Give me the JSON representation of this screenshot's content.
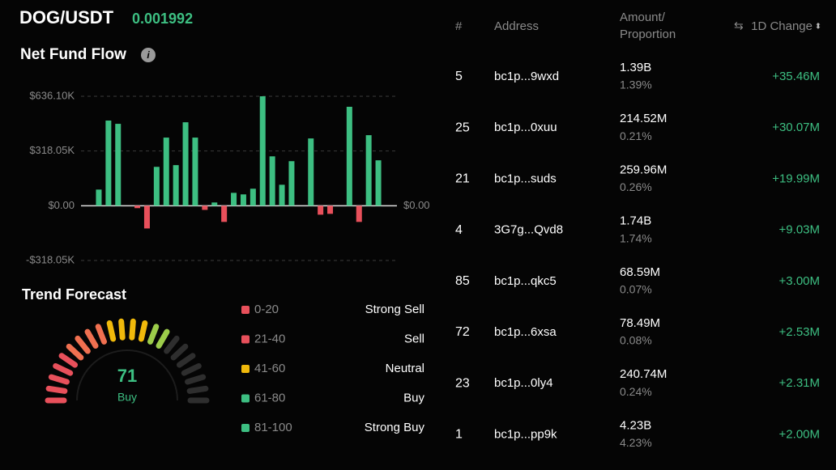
{
  "header": {
    "pair": "DOG/USDT",
    "price": "0.001992"
  },
  "chart_data": {
    "type": "bar",
    "title": "Net Fund Flow",
    "values": [
      94000,
      495000,
      476000,
      0,
      -14000,
      -132000,
      226000,
      396000,
      236000,
      485000,
      396000,
      -24000,
      19000,
      -94000,
      75000,
      66000,
      99000,
      636000,
      287000,
      122000,
      259000,
      0,
      391000,
      -52000,
      -47000,
      0,
      575000,
      -94000,
      410000,
      264000
    ],
    "positive_color": "#3dbf82",
    "negative_color": "#e8505b",
    "ylim": [
      -318050,
      636100
    ],
    "yticks": [
      {
        "value": 636100,
        "label": "$636.10K"
      },
      {
        "value": 318050,
        "label": "$318.05K"
      },
      {
        "value": 0,
        "label": "$0.00"
      },
      {
        "value": -318050,
        "label": "-$318.05K"
      }
    ],
    "grid": true
  },
  "trend": {
    "title": "Trend Forecast",
    "value": 71,
    "label": "Buy",
    "legend": [
      {
        "range": "0-20",
        "label": "Strong Sell",
        "color": "#e8505b"
      },
      {
        "range": "21-40",
        "label": "Sell",
        "color": "#e8505b"
      },
      {
        "range": "41-60",
        "label": "Neutral",
        "color": "#f0b90b"
      },
      {
        "range": "61-80",
        "label": "Buy",
        "color": "#3dbf82"
      },
      {
        "range": "81-100",
        "label": "Strong Buy",
        "color": "#3dbf82"
      }
    ]
  },
  "table": {
    "headers": [
      "#",
      "Address",
      [
        "Amount/",
        "Proportion"
      ],
      "1D Change"
    ],
    "rows": [
      [
        "5",
        "bc1p...9wxd",
        "1.39B",
        "1.39%",
        "+35.46M"
      ],
      [
        "25",
        "bc1p...0xuu",
        "214.52M",
        "0.21%",
        "+30.07M"
      ],
      [
        "21",
        "bc1p...suds",
        "259.96M",
        "0.26%",
        "+19.99M"
      ],
      [
        "4",
        "3G7g...Qvd8",
        "1.74B",
        "1.74%",
        "+9.03M"
      ],
      [
        "85",
        "bc1p...qkc5",
        "68.59M",
        "0.07%",
        "+3.00M"
      ],
      [
        "72",
        "bc1p...6xsa",
        "78.49M",
        "0.08%",
        "+2.53M"
      ],
      [
        "23",
        "bc1p...0ly4",
        "240.74M",
        "0.24%",
        "+2.31M"
      ],
      [
        "1",
        "bc1p...pp9k",
        "4.23B",
        "4.23%",
        "+2.00M"
      ]
    ]
  }
}
